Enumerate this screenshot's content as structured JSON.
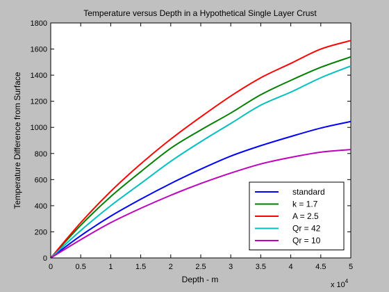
{
  "chart_data": {
    "type": "line",
    "title": "Temperature versus Depth in a Hypothetical Single Layer Crust",
    "xlabel": "Depth - m",
    "ylabel": "Temperature Difference from Surface",
    "x_exponent_label": "x 10",
    "x_exponent_power": "4",
    "xlim": [
      0,
      5
    ],
    "ylim": [
      0,
      1800
    ],
    "xticks": [
      0,
      0.5,
      1,
      1.5,
      2,
      2.5,
      3,
      3.5,
      4,
      4.5,
      5
    ],
    "xtick_labels": [
      "0",
      "0.5",
      "1",
      "1.5",
      "2",
      "2.5",
      "3",
      "3.5",
      "4",
      "4.5",
      "5"
    ],
    "yticks": [
      0,
      200,
      400,
      600,
      800,
      1000,
      1200,
      1400,
      1600,
      1800
    ],
    "ytick_labels": [
      "0",
      "200",
      "400",
      "600",
      "800",
      "1000",
      "1200",
      "1400",
      "1600",
      "1800"
    ],
    "grid": false,
    "legend_position": "bottom-right",
    "x": [
      0,
      0.5,
      1,
      1.5,
      2,
      2.5,
      3,
      3.5,
      4,
      4.5,
      5
    ],
    "series": [
      {
        "name": "standard",
        "color": "#0000ff",
        "values": [
          0,
          170,
          320,
          450,
          570,
          680,
          780,
          860,
          930,
          995,
          1045
        ]
      },
      {
        "name": "k = 1.7",
        "color": "#007f00",
        "values": [
          0,
          250,
          470,
          660,
          840,
          980,
          1110,
          1250,
          1360,
          1460,
          1540
        ]
      },
      {
        "name": "A = 2.5",
        "color": "#ff0000",
        "values": [
          0,
          270,
          510,
          720,
          910,
          1080,
          1240,
          1380,
          1490,
          1600,
          1665
        ]
      },
      {
        "name": "Qr = 42",
        "color": "#00bfbf",
        "values": [
          0,
          210,
          400,
          570,
          740,
          890,
          1030,
          1170,
          1270,
          1380,
          1470
        ]
      },
      {
        "name": "Qr = 10",
        "color": "#bf00bf",
        "values": [
          0,
          140,
          270,
          380,
          480,
          570,
          650,
          720,
          770,
          810,
          830
        ]
      }
    ]
  }
}
